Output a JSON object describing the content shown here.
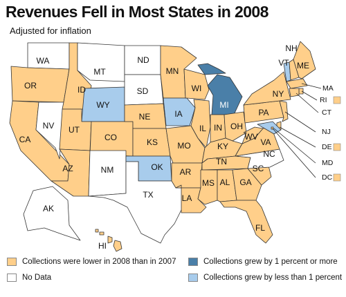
{
  "title": "Revenues Fell in Most States in 2008",
  "subtitle": "Adjusted for inflation",
  "colors": {
    "lower": "#FFCF8A",
    "no_data": "#FFFFFF",
    "grew_1_or_more": "#4A7FA8",
    "grew_less_than_1": "#A8CCEC",
    "border": "#333333"
  },
  "legend": [
    {
      "key": "lower",
      "label": "Collections were lower in 2008 than in 2007"
    },
    {
      "key": "no_data",
      "label": "No Data"
    },
    {
      "key": "grew_1_or_more",
      "label": "Collections grew by 1 percent or more"
    },
    {
      "key": "grew_less_than_1",
      "label": "Collections grew by less than 1 percent"
    }
  ],
  "states": [
    {
      "abbr": "WA",
      "status": "no_data"
    },
    {
      "abbr": "OR",
      "status": "lower"
    },
    {
      "abbr": "CA",
      "status": "lower"
    },
    {
      "abbr": "NV",
      "status": "no_data"
    },
    {
      "abbr": "ID",
      "status": "lower"
    },
    {
      "abbr": "MT",
      "status": "no_data"
    },
    {
      "abbr": "WY",
      "status": "grew_less_than_1"
    },
    {
      "abbr": "UT",
      "status": "lower"
    },
    {
      "abbr": "CO",
      "status": "lower"
    },
    {
      "abbr": "AZ",
      "status": "lower"
    },
    {
      "abbr": "NM",
      "status": "no_data"
    },
    {
      "abbr": "ND",
      "status": "no_data"
    },
    {
      "abbr": "SD",
      "status": "no_data"
    },
    {
      "abbr": "NE",
      "status": "lower"
    },
    {
      "abbr": "KS",
      "status": "lower"
    },
    {
      "abbr": "OK",
      "status": "grew_less_than_1"
    },
    {
      "abbr": "TX",
      "status": "no_data"
    },
    {
      "abbr": "MN",
      "status": "lower"
    },
    {
      "abbr": "IA",
      "status": "grew_less_than_1"
    },
    {
      "abbr": "MO",
      "status": "lower"
    },
    {
      "abbr": "AR",
      "status": "lower"
    },
    {
      "abbr": "LA",
      "status": "lower"
    },
    {
      "abbr": "WI",
      "status": "lower"
    },
    {
      "abbr": "IL",
      "status": "lower"
    },
    {
      "abbr": "MI",
      "status": "grew_1_or_more"
    },
    {
      "abbr": "IN",
      "status": "lower"
    },
    {
      "abbr": "OH",
      "status": "lower"
    },
    {
      "abbr": "KY",
      "status": "lower"
    },
    {
      "abbr": "TN",
      "status": "lower"
    },
    {
      "abbr": "MS",
      "status": "lower"
    },
    {
      "abbr": "AL",
      "status": "lower"
    },
    {
      "abbr": "GA",
      "status": "lower"
    },
    {
      "abbr": "FL",
      "status": "lower"
    },
    {
      "abbr": "SC",
      "status": "lower"
    },
    {
      "abbr": "NC",
      "status": "no_data"
    },
    {
      "abbr": "VA",
      "status": "lower"
    },
    {
      "abbr": "WV",
      "status": "lower"
    },
    {
      "abbr": "PA",
      "status": "lower"
    },
    {
      "abbr": "NY",
      "status": "lower"
    },
    {
      "abbr": "VT",
      "status": "grew_less_than_1"
    },
    {
      "abbr": "NH",
      "status": "lower"
    },
    {
      "abbr": "ME",
      "status": "lower"
    },
    {
      "abbr": "MA",
      "status": "lower"
    },
    {
      "abbr": "RI",
      "status": "lower"
    },
    {
      "abbr": "CT",
      "status": "lower"
    },
    {
      "abbr": "NJ",
      "status": "lower"
    },
    {
      "abbr": "DE",
      "status": "lower"
    },
    {
      "abbr": "MD",
      "status": "grew_less_than_1"
    },
    {
      "abbr": "DC",
      "status": "lower"
    },
    {
      "abbr": "AK",
      "status": "no_data"
    },
    {
      "abbr": "HI",
      "status": "lower"
    }
  ]
}
